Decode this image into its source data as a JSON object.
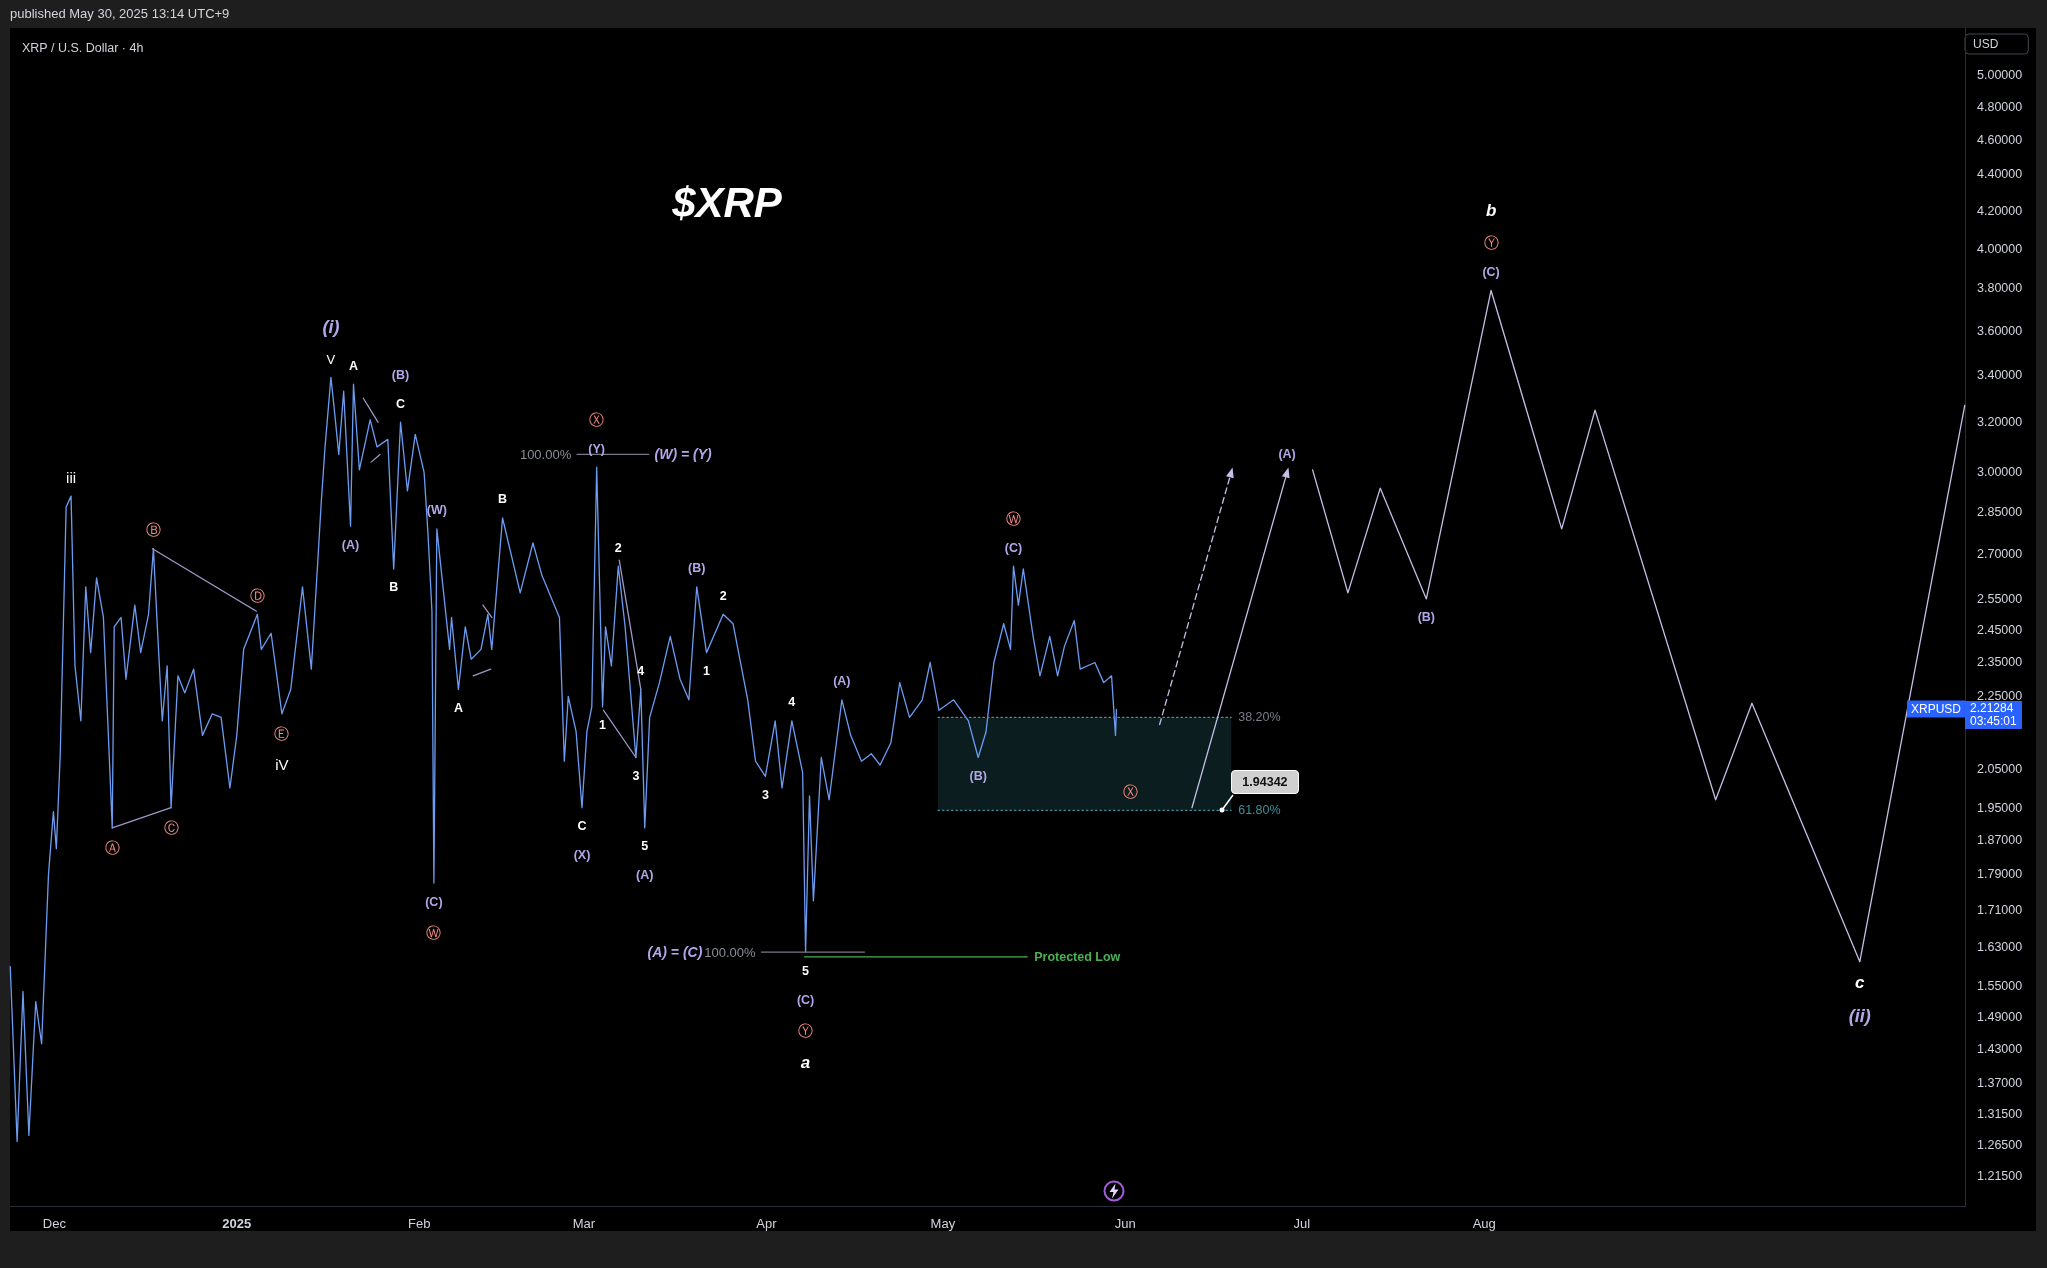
{
  "chart_data": {
    "type": "line",
    "title": "$XRP",
    "subtitle": "XRP / U.S. Dollar · 4h",
    "ylabel": "USD",
    "log": true,
    "xlim": [
      "2024-11-23T11:00",
      "2025-10-21T17:00"
    ],
    "ylim": [
      1.169,
      5.31
    ],
    "xticks": [
      {
        "value": "2024-12-01",
        "label": "Dec"
      },
      {
        "value": "2025-01-01",
        "label": "2025"
      },
      {
        "value": "2025-02-01",
        "label": "Feb"
      },
      {
        "value": "2025-03-01",
        "label": "Mar"
      },
      {
        "value": "2025-04-01",
        "label": "Apr"
      },
      {
        "value": "2025-05-01",
        "label": "May"
      },
      {
        "value": "2025-06-01",
        "label": "Jun"
      },
      {
        "value": "2025-07-01",
        "label": "Jul"
      },
      {
        "value": "2025-08-01",
        "label": "Aug"
      }
    ],
    "yticks": [
      {
        "value": 1.215,
        "label": "1.21500"
      },
      {
        "value": 1.265,
        "label": "1.26500"
      },
      {
        "value": 1.315,
        "label": "1.31500"
      },
      {
        "value": 1.37,
        "label": "1.37000"
      },
      {
        "value": 1.43,
        "label": "1.43000"
      },
      {
        "value": 1.49,
        "label": "1.49000"
      },
      {
        "value": 1.55,
        "label": "1.55000"
      },
      {
        "value": 1.63,
        "label": "1.63000"
      },
      {
        "value": 1.71,
        "label": "1.71000"
      },
      {
        "value": 1.79,
        "label": "1.79000"
      },
      {
        "value": 1.87,
        "label": "1.87000"
      },
      {
        "value": 1.95,
        "label": "1.95000"
      },
      {
        "value": 2.05,
        "label": "2.05000"
      },
      {
        "value": 2.25,
        "label": "2.25000"
      },
      {
        "value": 2.35,
        "label": "2.35000"
      },
      {
        "value": 2.45,
        "label": "2.45000"
      },
      {
        "value": 2.55,
        "label": "2.55000"
      },
      {
        "value": 2.7,
        "label": "2.70000"
      },
      {
        "value": 2.85,
        "label": "2.85000"
      },
      {
        "value": 3,
        "label": "3.00000"
      },
      {
        "value": 3.2,
        "label": "3.20000"
      },
      {
        "value": 3.4,
        "label": "3.40000"
      },
      {
        "value": 3.6,
        "label": "3.60000"
      },
      {
        "value": 3.8,
        "label": "3.80000"
      },
      {
        "value": 4,
        "label": "4.00000"
      },
      {
        "value": 4.2,
        "label": "4.20000"
      },
      {
        "value": 4.4,
        "label": "4.40000"
      },
      {
        "value": 4.6,
        "label": "4.60000"
      },
      {
        "value": 4.8,
        "label": "4.80000"
      },
      {
        "value": 5,
        "label": "5.00000"
      }
    ],
    "series": [
      {
        "color": "#6c9cf2",
        "x": [
          "2024-11-23T12:00",
          "2024-11-24T16:00",
          "2024-11-25T16:00",
          "2024-11-26T16:00",
          "2024-11-27T20:00",
          "2024-11-28T20:00",
          "2024-11-30T00:00",
          "2024-11-30T20:00",
          "2024-12-01T08:00",
          "2024-12-02T00:00",
          "2024-12-03T00:00",
          "2024-12-03T20:00",
          "2024-12-04T12:00",
          "2024-12-05T12:00",
          "2024-12-06T08:00",
          "2024-12-07T04:00",
          "2024-12-08T04:00",
          "2024-12-09T08:00",
          "2024-12-10T20:00",
          "2024-12-11T04:00",
          "2024-12-12T08:00",
          "2024-12-13T04:00",
          "2024-12-14T16:00",
          "2024-12-15T16:00",
          "2024-12-17T00:00",
          "2024-12-17T20:00",
          "2024-12-18T12:00",
          "2024-12-19T08:00",
          "2024-12-20T04:00",
          "2024-12-20T20:00",
          "2024-12-22T00:00",
          "2024-12-23T04:00",
          "2024-12-24T16:00",
          "2024-12-26T04:00",
          "2024-12-27T20:00",
          "2024-12-29T08:00",
          "2024-12-30T20:00",
          "2025-01-01T00:00",
          "2025-01-02T04:00",
          "2025-01-04T12:00",
          "2025-01-05T04:00",
          "2025-01-06T20:00",
          "2025-01-08T16:00",
          "2025-01-10T04:00",
          "2025-01-12T04:00",
          "2025-01-13T16:00",
          "2025-01-14T20:00",
          "2025-01-15T08:00",
          "2025-01-16T00:00",
          "2025-01-17T00:00",
          "2025-01-17T16:00",
          "2025-01-18T08:00",
          "2025-01-19T04:00",
          "2025-01-20T08:00",
          "2025-01-20T20:00",
          "2025-01-21T20:00",
          "2025-01-23T16:00",
          "2025-01-24T20:00",
          "2025-01-26T16:00",
          "2025-01-27T16:00",
          "2025-01-28T20:00",
          "2025-01-30T00:00",
          "2025-01-31T08:00",
          "2025-02-01T20:00",
          "2025-02-02T12:00",
          "2025-02-03T04:00",
          "2025-02-03T12:00",
          "2025-02-04T00:00",
          "2025-02-06T04:00",
          "2025-02-06T12:00",
          "2025-02-07T16:00",
          "2025-02-08T20:00",
          "2025-02-09T20:00",
          "2025-02-11T12:00",
          "2025-02-12T16:00",
          "2025-02-13T08:00",
          "2025-02-15T04:00",
          "2025-02-16T04:00",
          "2025-02-18T04:00",
          "2025-02-20T08:00",
          "2025-02-21T20:00",
          "2025-02-24T20:00",
          "2025-02-25T16:00",
          "2025-02-26T08:00",
          "2025-02-27T16:00",
          "2025-02-28T16:00",
          "2025-03-01T12:00",
          "2025-03-02T08:00",
          "2025-03-03T04:00",
          "2025-03-04T04:00",
          "2025-03-04T16:00",
          "2025-03-05T16:00",
          "2025-03-06T20:00",
          "2025-03-08T00:00",
          "2025-03-09T20:00",
          "2025-03-10T16:00",
          "2025-03-11T08:00",
          "2025-03-12T04:00",
          "2025-03-13T20:00",
          "2025-03-15T16:00",
          "2025-03-17T08:00",
          "2025-03-18T20:00",
          "2025-03-20T04:00",
          "2025-03-21T20:00",
          "2025-03-24T16:00",
          "2025-03-26T08:00",
          "2025-03-28T20:00",
          "2025-03-30T04:00",
          "2025-03-31T20:00",
          "2025-04-02T12:00",
          "2025-04-03T16:00",
          "2025-04-05T08:00",
          "2025-04-07T04:00",
          "2025-04-07T16:00",
          "2025-04-08T08:00",
          "2025-04-09T00:00",
          "2025-04-10T08:00",
          "2025-04-11T16:00",
          "2025-04-13T20:00",
          "2025-04-15T08:00",
          "2025-04-17T04:00",
          "2025-04-18T20:00",
          "2025-04-20T08:00",
          "2025-04-22T04:00",
          "2025-04-23T16:00",
          "2025-04-25T08:00",
          "2025-04-27T12:00",
          "2025-04-28T20:00",
          "2025-04-30T08:00",
          "2025-05-02T20:00",
          "2025-05-05T08:00",
          "2025-05-07T00:00",
          "2025-05-08T08:00",
          "2025-05-09T16:00",
          "2025-05-11T08:00",
          "2025-05-12T12:00",
          "2025-05-13T00:00",
          "2025-05-13T20:00",
          "2025-05-14T16:00",
          "2025-05-16T08:00",
          "2025-05-17T12:00",
          "2025-05-19T04:00",
          "2025-05-20T12:00",
          "2025-05-21T16:00",
          "2025-05-23T08:00",
          "2025-05-24T08:00",
          "2025-05-26T20:00",
          "2025-05-28T08:00",
          "2025-05-29T16:00",
          "2025-05-30T08:00",
          "2025-05-30T12:00"
        ],
        "values": [
          1.59,
          1.27,
          1.54,
          1.28,
          1.52,
          1.44,
          1.79,
          1.94,
          1.85,
          2.09,
          2.87,
          2.91,
          2.34,
          2.18,
          2.59,
          2.38,
          2.62,
          2.49,
          1.9,
          2.46,
          2.49,
          2.3,
          2.53,
          2.38,
          2.5,
          2.72,
          2.46,
          2.18,
          2.34,
          1.95,
          2.31,
          2.26,
          2.33,
          2.14,
          2.2,
          2.19,
          2.0,
          2.14,
          2.39,
          2.5,
          2.39,
          2.44,
          2.2,
          2.27,
          2.59,
          2.33,
          2.7,
          2.88,
          3.1,
          3.39,
          3.23,
          3.07,
          3.33,
          2.8,
          3.36,
          3.01,
          3.21,
          3.1,
          3.13,
          2.65,
          3.2,
          2.93,
          3.15,
          3.0,
          2.77,
          2.51,
          1.77,
          2.79,
          2.39,
          2.49,
          2.27,
          2.46,
          2.36,
          2.39,
          2.5,
          2.39,
          2.83,
          2.74,
          2.57,
          2.74,
          2.63,
          2.49,
          2.07,
          2.25,
          2.15,
          1.95,
          2.15,
          2.22,
          3.02,
          2.22,
          2.46,
          2.34,
          2.66,
          2.46,
          2.08,
          2.27,
          1.9,
          2.19,
          2.29,
          2.43,
          2.3,
          2.24,
          2.59,
          2.38,
          2.5,
          2.47,
          2.24,
          2.07,
          2.03,
          2.18,
          2.0,
          2.18,
          2.04,
          1.62,
          1.98,
          1.73,
          2.08,
          1.97,
          2.24,
          2.14,
          2.07,
          2.09,
          2.06,
          2.12,
          2.29,
          2.19,
          2.24,
          2.35,
          2.21,
          2.24,
          2.18,
          2.08,
          2.15,
          2.35,
          2.47,
          2.39,
          2.66,
          2.53,
          2.65,
          2.43,
          2.31,
          2.43,
          2.31,
          2.4,
          2.48,
          2.33,
          2.35,
          2.29,
          2.31,
          2.14,
          2.21284
        ]
      },
      {
        "color": "#9d97c7",
        "x": [
          "2024-12-17T16:00",
          "2025-01-04T08:00"
        ],
        "values": [
          2.72,
          2.51
        ]
      },
      {
        "color": "#9d97c7",
        "x": [
          "2024-12-10T20:00",
          "2024-12-20T20:00"
        ],
        "values": [
          1.9,
          1.95
        ]
      },
      {
        "color": "#9d97c7",
        "x": [
          "2025-01-22T12:00",
          "2025-01-25T00:00"
        ],
        "values": [
          3.3,
          3.2
        ]
      },
      {
        "color": "#9d97c7",
        "x": [
          "2025-01-23T20:00",
          "2025-01-25T08:00"
        ],
        "values": [
          3.04,
          3.07
        ]
      },
      {
        "color": "#9d97c7",
        "x": [
          "2025-02-11T20:00",
          "2025-02-13T08:00"
        ],
        "values": [
          2.53,
          2.49
        ]
      },
      {
        "color": "#9d97c7",
        "x": [
          "2025-02-10T04:00",
          "2025-02-13T04:00"
        ],
        "values": [
          2.31,
          2.33
        ]
      },
      {
        "color": "#9d97c7",
        "x": [
          "2025-03-04T08:00",
          "2025-03-09T20:00"
        ],
        "values": [
          2.21,
          2.08
        ]
      },
      {
        "color": "#9d97c7",
        "x": [
          "2025-03-07T00:00",
          "2025-03-10T16:00"
        ],
        "values": [
          2.68,
          2.27
        ]
      },
      {
        "color": "#787b86",
        "x": [
          "2025-02-27T20:00",
          "2025-03-12T00:00"
        ],
        "values": [
          3.07,
          3.07
        ]
      },
      {
        "color": "#787b86",
        "x": [
          "2025-03-31T04:00",
          "2025-04-17T16:00"
        ],
        "values": [
          1.62,
          1.62
        ]
      },
      {
        "name": "Protected Low",
        "color": "#4caf50",
        "x": [
          "2025-04-07T12:00",
          "2025-05-15T08:00"
        ],
        "values": [
          1.61,
          1.61
        ]
      },
      {
        "name": "38.20%",
        "color": "#787b86",
        "line_style": "dotted",
        "x": [
          "2025-04-30T04:00",
          "2025-06-19T00:00"
        ],
        "values": [
          2.19,
          2.19
        ]
      },
      {
        "name": "61.80%",
        "color": "#3d8f9c",
        "line_style": "dotted",
        "x": [
          "2025-04-30T04:00",
          "2025-06-19T00:00"
        ],
        "values": [
          1.94342,
          1.94342
        ],
        "lower": [
          1.94342,
          1.94342
        ],
        "upper": [
          2.19,
          2.19
        ]
      },
      {
        "color": "#c3bfe6",
        "line_style": "dashed",
        "marker": "triangle",
        "x": [
          "2025-06-06T20:00",
          "2025-06-19T00:00"
        ],
        "values": [
          2.17,
          3.0
        ]
      },
      {
        "color": "#c3bfe6",
        "marker": "triangle",
        "x": [
          "2025-06-12T08:00",
          "2025-06-28T12:00"
        ],
        "values": [
          1.95,
          3.0
        ]
      },
      {
        "color": "#c3bfe6",
        "x": [
          "2025-07-02T20:00",
          "2025-07-08T20:00",
          "2025-07-14T08:00",
          "2025-07-22T04:00",
          "2025-08-02T04:00",
          "2025-08-14T04:00",
          "2025-08-19T20:00",
          "2025-09-09T08:00",
          "2025-09-15T12:00",
          "2025-10-03T20:00",
          "2025-10-21T16:00"
        ],
        "values": [
          3.01,
          2.57,
          2.94,
          2.55,
          3.79,
          2.79,
          3.25,
          1.97,
          2.23,
          1.6,
          3.27
        ]
      }
    ],
    "annotations": [
      "published May 30, 2025 13:14 UTC+9",
      "XRPUSD",
      "2.21284",
      "03:45:01",
      {
        "text": "iii",
        "x": "2024-12-03T20:00",
        "y": 2.91
      },
      {
        "text": "Ⓐ",
        "x": "2024-12-10T20:00",
        "y": 1.9
      },
      {
        "text": "Ⓑ",
        "x": "2024-12-17T20:00",
        "y": 2.72
      },
      {
        "text": "Ⓒ",
        "x": "2024-12-20T20:00",
        "y": 1.95
      },
      {
        "text": "Ⓓ",
        "x": "2025-01-04T12:00",
        "y": 2.5
      },
      {
        "text": "Ⓔ",
        "x": "2025-01-08T16:00",
        "y": 2.2
      },
      "iV",
      {
        "text": "V",
        "x": "2025-01-17T00:00",
        "y": 3.39
      },
      "(i)",
      {
        "text": "(A)",
        "x": "2025-01-20T08:00",
        "y": 2.8
      },
      {
        "text": "A",
        "x": "2025-01-20T20:00",
        "y": 3.36
      },
      {
        "text": "B",
        "x": "2025-01-27T16:00",
        "y": 2.65
      },
      {
        "text": "C",
        "x": "2025-01-28T20:00",
        "y": 3.2
      },
      "(B)",
      {
        "text": "(C)",
        "x": "2025-02-03T12:00",
        "y": 1.77
      },
      "Ⓦ",
      {
        "text": "(W)",
        "x": "2025-02-04T00:00",
        "y": 2.79
      },
      {
        "text": "A",
        "x": "2025-02-07T16:00",
        "y": 2.27
      },
      {
        "text": "B",
        "x": "2025-02-15T04:00",
        "y": 2.83
      },
      {
        "text": "C",
        "x": "2025-02-28T16:00",
        "y": 1.95
      },
      "(X)",
      {
        "text": "100.00%",
        "x": "2025-02-27T20:00",
        "y": 3.07
      },
      {
        "text": "(W) = (Y)",
        "x": "2025-03-12T00:00",
        "y": 3.07
      },
      {
        "text": "(Y)",
        "x": "2025-03-03T04:00",
        "y": 3.02
      },
      "Ⓧ",
      {
        "text": "1",
        "x": "2025-03-04T04:00",
        "y": 2.22
      },
      {
        "text": "2",
        "x": "2025-03-06T20:00",
        "y": 2.66
      },
      {
        "text": "3",
        "x": "2025-03-09T20:00",
        "y": 2.08
      },
      {
        "text": "4",
        "x": "2025-03-10T16:00",
        "y": 2.27
      },
      {
        "text": "5",
        "x": "2025-03-11T08:00",
        "y": 1.9
      },
      "(A)",
      {
        "text": "(B)",
        "x": "2025-03-20T04:00",
        "y": 2.59
      },
      {
        "text": "1",
        "x": "2025-03-21T20:00",
        "y": 2.38
      },
      {
        "text": "2",
        "x": "2025-03-24T16:00",
        "y": 2.5
      },
      {
        "text": "3",
        "x": "2025-03-31T20:00",
        "y": 2.03
      },
      {
        "text": "4",
        "x": "2025-04-05T08:00",
        "y": 2.18
      },
      {
        "text": "100.00%",
        "x": "2025-03-31T04:00",
        "y": 1.62
      },
      "(A) = (C)",
      {
        "text": "5",
        "x": "2025-04-07T16:00",
        "y": 1.62
      },
      "(C)",
      "Ⓨ",
      "a",
      {
        "text": "(A)",
        "x": "2025-04-13T20:00",
        "y": 2.24
      },
      {
        "text": "(B)",
        "x": "2025-05-07T00:00",
        "y": 2.08
      },
      {
        "text": "(C)",
        "x": "2025-05-13T00:00",
        "y": 2.66
      },
      "Ⓦ",
      {
        "text": "Ⓧ",
        "x": "2025-06-01T20:00",
        "y": 1.94342
      },
      {
        "text": "1.94342",
        "x": "2025-06-17T12:00",
        "y": 1.94342
      },
      {
        "text": "(A)",
        "x": "2025-06-28T12:00",
        "y": 3.0
      },
      {
        "text": "(B)",
        "x": "2025-07-22T04:00",
        "y": 2.55
      },
      {
        "text": "(C)",
        "x": "2025-08-02T04:00",
        "y": 3.79
      },
      "Ⓨ",
      "b",
      {
        "text": "c",
        "x": "2025-10-03T20:00",
        "y": 1.6
      },
      "(ii)"
    ]
  }
}
